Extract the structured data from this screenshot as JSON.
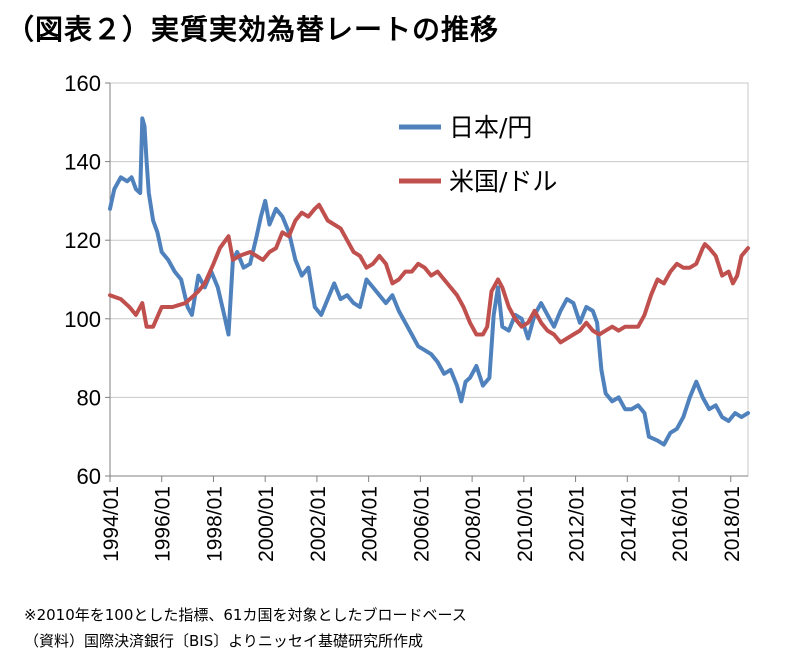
{
  "title": "（図表２）実質実効為替レートの推移",
  "notes": [
    "※2010年を100とした指標、61カ国を対象としたブロードベース",
    "（資料）国際決済銀行〔BIS〕よりニッセイ基礎研究所作成"
  ],
  "colors": {
    "japan": "#4f81bd",
    "us": "#c0504d",
    "grid": "#c8c8c8",
    "axis": "#808080"
  },
  "chart_data": {
    "type": "line",
    "ylim": [
      60,
      160
    ],
    "yticks": [
      60,
      80,
      100,
      120,
      140,
      160
    ],
    "xlim": [
      "1994-01",
      "2018-09"
    ],
    "xticks": [
      "1994/01",
      "1996/01",
      "1998/01",
      "2000/01",
      "2002/01",
      "2004/01",
      "2006/01",
      "2008/01",
      "2010/01",
      "2012/01",
      "2014/01",
      "2016/01",
      "2018/01"
    ],
    "grid": true,
    "legend_position": "top-right",
    "series": [
      {
        "name": "日本/円",
        "color": "#4f81bd",
        "points": [
          [
            "1994-01",
            128
          ],
          [
            "1994-03",
            133
          ],
          [
            "1994-06",
            136
          ],
          [
            "1994-09",
            135
          ],
          [
            "1994-11",
            136
          ],
          [
            "1995-01",
            133
          ],
          [
            "1995-03",
            132
          ],
          [
            "1995-04",
            151
          ],
          [
            "1995-05",
            149
          ],
          [
            "1995-06",
            140
          ],
          [
            "1995-07",
            132
          ],
          [
            "1995-09",
            125
          ],
          [
            "1995-11",
            122
          ],
          [
            "1996-01",
            117
          ],
          [
            "1996-04",
            115
          ],
          [
            "1996-07",
            112
          ],
          [
            "1996-10",
            110
          ],
          [
            "1997-01",
            103
          ],
          [
            "1997-03",
            101
          ],
          [
            "1997-06",
            111
          ],
          [
            "1997-09",
            108
          ],
          [
            "1997-12",
            112
          ],
          [
            "1998-03",
            108
          ],
          [
            "1998-06",
            101
          ],
          [
            "1998-08",
            96
          ],
          [
            "1998-10",
            115
          ],
          [
            "1998-12",
            117
          ],
          [
            "1999-03",
            113
          ],
          [
            "1999-06",
            114
          ],
          [
            "1999-09",
            121
          ],
          [
            "1999-11",
            126
          ],
          [
            "2000-01",
            130
          ],
          [
            "2000-03",
            124
          ],
          [
            "2000-06",
            128
          ],
          [
            "2000-09",
            126
          ],
          [
            "2000-12",
            122
          ],
          [
            "2001-03",
            115
          ],
          [
            "2001-06",
            111
          ],
          [
            "2001-09",
            113
          ],
          [
            "2001-12",
            103
          ],
          [
            "2002-03",
            101
          ],
          [
            "2002-06",
            105
          ],
          [
            "2002-09",
            109
          ],
          [
            "2002-12",
            105
          ],
          [
            "2003-03",
            106
          ],
          [
            "2003-06",
            104
          ],
          [
            "2003-09",
            103
          ],
          [
            "2003-12",
            110
          ],
          [
            "2004-03",
            108
          ],
          [
            "2004-06",
            106
          ],
          [
            "2004-09",
            104
          ],
          [
            "2004-12",
            106
          ],
          [
            "2005-03",
            102
          ],
          [
            "2005-06",
            99
          ],
          [
            "2005-09",
            96
          ],
          [
            "2005-12",
            93
          ],
          [
            "2006-03",
            92
          ],
          [
            "2006-06",
            91
          ],
          [
            "2006-09",
            89
          ],
          [
            "2006-12",
            86
          ],
          [
            "2007-03",
            87
          ],
          [
            "2007-06",
            83
          ],
          [
            "2007-08",
            79
          ],
          [
            "2007-10",
            84
          ],
          [
            "2007-12",
            85
          ],
          [
            "2008-03",
            88
          ],
          [
            "2008-06",
            83
          ],
          [
            "2008-09",
            85
          ],
          [
            "2008-11",
            101
          ],
          [
            "2009-01",
            108
          ],
          [
            "2009-03",
            98
          ],
          [
            "2009-06",
            97
          ],
          [
            "2009-09",
            101
          ],
          [
            "2009-12",
            100
          ],
          [
            "2010-03",
            95
          ],
          [
            "2010-06",
            101
          ],
          [
            "2010-09",
            104
          ],
          [
            "2010-12",
            101
          ],
          [
            "2011-03",
            98
          ],
          [
            "2011-06",
            102
          ],
          [
            "2011-09",
            105
          ],
          [
            "2011-12",
            104
          ],
          [
            "2012-03",
            99
          ],
          [
            "2012-06",
            103
          ],
          [
            "2012-09",
            102
          ],
          [
            "2012-11",
            99
          ],
          [
            "2013-01",
            87
          ],
          [
            "2013-03",
            81
          ],
          [
            "2013-06",
            79
          ],
          [
            "2013-09",
            80
          ],
          [
            "2013-12",
            77
          ],
          [
            "2014-03",
            77
          ],
          [
            "2014-06",
            78
          ],
          [
            "2014-09",
            76
          ],
          [
            "2014-11",
            70
          ],
          [
            "2015-03",
            69
          ],
          [
            "2015-06",
            68
          ],
          [
            "2015-09",
            71
          ],
          [
            "2015-12",
            72
          ],
          [
            "2016-03",
            75
          ],
          [
            "2016-06",
            80
          ],
          [
            "2016-09",
            84
          ],
          [
            "2016-12",
            80
          ],
          [
            "2017-03",
            77
          ],
          [
            "2017-06",
            78
          ],
          [
            "2017-09",
            75
          ],
          [
            "2017-12",
            74
          ],
          [
            "2018-03",
            76
          ],
          [
            "2018-06",
            75
          ],
          [
            "2018-09",
            76
          ]
        ]
      },
      {
        "name": "米国/ドル",
        "color": "#c0504d",
        "points": [
          [
            "1994-01",
            106
          ],
          [
            "1994-06",
            105
          ],
          [
            "1994-10",
            103
          ],
          [
            "1995-01",
            101
          ],
          [
            "1995-04",
            104
          ],
          [
            "1995-06",
            98
          ],
          [
            "1995-09",
            98
          ],
          [
            "1996-01",
            103
          ],
          [
            "1996-06",
            103
          ],
          [
            "1996-12",
            104
          ],
          [
            "1997-06",
            107
          ],
          [
            "1997-09",
            109
          ],
          [
            "1998-01",
            114
          ],
          [
            "1998-04",
            118
          ],
          [
            "1998-08",
            121
          ],
          [
            "1998-10",
            115
          ],
          [
            "1999-01",
            116
          ],
          [
            "1999-06",
            117
          ],
          [
            "1999-12",
            115
          ],
          [
            "2000-03",
            117
          ],
          [
            "2000-06",
            118
          ],
          [
            "2000-09",
            122
          ],
          [
            "2000-12",
            121
          ],
          [
            "2001-03",
            125
          ],
          [
            "2001-06",
            127
          ],
          [
            "2001-09",
            126
          ],
          [
            "2001-12",
            128
          ],
          [
            "2002-02",
            129
          ],
          [
            "2002-06",
            125
          ],
          [
            "2002-09",
            124
          ],
          [
            "2002-12",
            123
          ],
          [
            "2003-03",
            120
          ],
          [
            "2003-06",
            117
          ],
          [
            "2003-09",
            116
          ],
          [
            "2003-12",
            113
          ],
          [
            "2004-03",
            114
          ],
          [
            "2004-06",
            116
          ],
          [
            "2004-09",
            114
          ],
          [
            "2004-12",
            109
          ],
          [
            "2005-03",
            110
          ],
          [
            "2005-06",
            112
          ],
          [
            "2005-09",
            112
          ],
          [
            "2005-12",
            114
          ],
          [
            "2006-03",
            113
          ],
          [
            "2006-06",
            111
          ],
          [
            "2006-09",
            112
          ],
          [
            "2006-12",
            110
          ],
          [
            "2007-03",
            108
          ],
          [
            "2007-06",
            106
          ],
          [
            "2007-09",
            103
          ],
          [
            "2007-12",
            99
          ],
          [
            "2008-03",
            96
          ],
          [
            "2008-06",
            96
          ],
          [
            "2008-08",
            98
          ],
          [
            "2008-10",
            107
          ],
          [
            "2009-01",
            110
          ],
          [
            "2009-03",
            108
          ],
          [
            "2009-06",
            103
          ],
          [
            "2009-09",
            100
          ],
          [
            "2009-12",
            98
          ],
          [
            "2010-03",
            99
          ],
          [
            "2010-06",
            102
          ],
          [
            "2010-09",
            99
          ],
          [
            "2010-12",
            97
          ],
          [
            "2011-03",
            96
          ],
          [
            "2011-06",
            94
          ],
          [
            "2011-09",
            95
          ],
          [
            "2011-12",
            96
          ],
          [
            "2012-03",
            97
          ],
          [
            "2012-06",
            99
          ],
          [
            "2012-09",
            97
          ],
          [
            "2012-12",
            96
          ],
          [
            "2013-03",
            97
          ],
          [
            "2013-06",
            98
          ],
          [
            "2013-09",
            97
          ],
          [
            "2013-12",
            98
          ],
          [
            "2014-03",
            98
          ],
          [
            "2014-06",
            98
          ],
          [
            "2014-09",
            101
          ],
          [
            "2014-12",
            106
          ],
          [
            "2015-03",
            110
          ],
          [
            "2015-06",
            109
          ],
          [
            "2015-09",
            112
          ],
          [
            "2015-12",
            114
          ],
          [
            "2016-03",
            113
          ],
          [
            "2016-06",
            113
          ],
          [
            "2016-09",
            114
          ],
          [
            "2016-12",
            118
          ],
          [
            "2017-01",
            119
          ],
          [
            "2017-03",
            118
          ],
          [
            "2017-06",
            116
          ],
          [
            "2017-09",
            111
          ],
          [
            "2017-12",
            112
          ],
          [
            "2018-02",
            109
          ],
          [
            "2018-04",
            111
          ],
          [
            "2018-06",
            116
          ],
          [
            "2018-09",
            118
          ]
        ]
      }
    ]
  }
}
